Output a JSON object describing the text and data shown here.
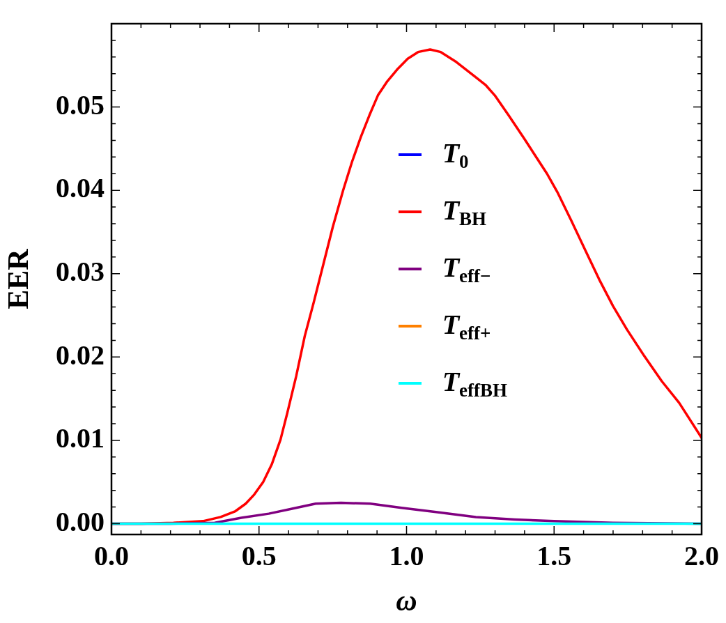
{
  "chart_data": {
    "type": "line",
    "xlabel": "ω",
    "ylabel": "EER",
    "xlim": [
      0,
      2
    ],
    "ylim": [
      -0.0013,
      0.06
    ],
    "xticks": [
      {
        "value": 0,
        "label": "0.0"
      },
      {
        "value": 0.1,
        "label": null
      },
      {
        "value": 0.2,
        "label": null
      },
      {
        "value": 0.3,
        "label": null
      },
      {
        "value": 0.4,
        "label": null
      },
      {
        "value": 0.5,
        "label": "0.5"
      },
      {
        "value": 0.6,
        "label": null
      },
      {
        "value": 0.7,
        "label": null
      },
      {
        "value": 0.8,
        "label": null
      },
      {
        "value": 0.9,
        "label": null
      },
      {
        "value": 1,
        "label": "1.0"
      },
      {
        "value": 1.1,
        "label": null
      },
      {
        "value": 1.2,
        "label": null
      },
      {
        "value": 1.3,
        "label": null
      },
      {
        "value": 1.4,
        "label": null
      },
      {
        "value": 1.5,
        "label": "1.5"
      },
      {
        "value": 1.6,
        "label": null
      },
      {
        "value": 1.7,
        "label": null
      },
      {
        "value": 1.8,
        "label": null
      },
      {
        "value": 1.9,
        "label": null
      },
      {
        "value": 2,
        "label": "2.0"
      }
    ],
    "yticks": [
      {
        "value": 0,
        "label": "0.00"
      },
      {
        "value": 0.002,
        "label": null
      },
      {
        "value": 0.004,
        "label": null
      },
      {
        "value": 0.006,
        "label": null
      },
      {
        "value": 0.008,
        "label": null
      },
      {
        "value": 0.01,
        "label": "0.01"
      },
      {
        "value": 0.012,
        "label": null
      },
      {
        "value": 0.014,
        "label": null
      },
      {
        "value": 0.016,
        "label": null
      },
      {
        "value": 0.018,
        "label": null
      },
      {
        "value": 0.02,
        "label": "0.02"
      },
      {
        "value": 0.022,
        "label": null
      },
      {
        "value": 0.024,
        "label": null
      },
      {
        "value": 0.026,
        "label": null
      },
      {
        "value": 0.028,
        "label": null
      },
      {
        "value": 0.03,
        "label": "0.03"
      },
      {
        "value": 0.032,
        "label": null
      },
      {
        "value": 0.034,
        "label": null
      },
      {
        "value": 0.036,
        "label": null
      },
      {
        "value": 0.038,
        "label": null
      },
      {
        "value": 0.04,
        "label": "0.04"
      },
      {
        "value": 0.042,
        "label": null
      },
      {
        "value": 0.044,
        "label": null
      },
      {
        "value": 0.046,
        "label": null
      },
      {
        "value": 0.048,
        "label": null
      },
      {
        "value": 0.05,
        "label": "0.05"
      },
      {
        "value": 0.052,
        "label": null
      },
      {
        "value": 0.054,
        "label": null
      },
      {
        "value": 0.056,
        "label": null
      },
      {
        "value": 0.058,
        "label": null
      }
    ],
    "legend": "center",
    "marker": "none",
    "line_style": "solid",
    "series": [
      {
        "name": "T$_{0}$",
        "color": "#0000ff"
      },
      {
        "name": "T$_{BH}$",
        "color": "#ff0000",
        "x": [
          0,
          0.1,
          0.21,
          0.31,
          0.37,
          0.42,
          0.455,
          0.484,
          0.514,
          0.543,
          0.573,
          0.596,
          0.626,
          0.655,
          0.685,
          0.72,
          0.75,
          0.785,
          0.815,
          0.845,
          0.874,
          0.903,
          0.933,
          0.968,
          1.004,
          1.039,
          1.08,
          1.116,
          1.169,
          1.234,
          1.269,
          1.299,
          1.346,
          1.399,
          1.476,
          1.511,
          1.558,
          1.606,
          1.653,
          1.7,
          1.747,
          1.806,
          1.865,
          1.924,
          2
        ],
        "values": [
          0,
          0,
          0.0001,
          0.0003,
          0.0008,
          0.0015,
          0.0024,
          0.0035,
          0.005,
          0.0071,
          0.0101,
          0.0133,
          0.0177,
          0.0225,
          0.0265,
          0.0314,
          0.0356,
          0.04,
          0.0434,
          0.0464,
          0.049,
          0.0514,
          0.053,
          0.0545,
          0.0558,
          0.0566,
          0.0569,
          0.0566,
          0.0554,
          0.0536,
          0.0526,
          0.0514,
          0.049,
          0.0462,
          0.042,
          0.0398,
          0.0364,
          0.0328,
          0.0293,
          0.0261,
          0.0233,
          0.0201,
          0.0171,
          0.0145,
          0.0103
        ]
      },
      {
        "name": "T$_{eff−}$",
        "color": "#800080",
        "x": [
          0,
          0.2,
          0.35,
          0.44,
          0.533,
          0.612,
          0.692,
          0.778,
          0.877,
          0.983,
          1.1,
          1.235,
          1.367,
          1.5,
          1.7,
          2
        ],
        "values": [
          0,
          0,
          0.0001,
          0.0007,
          0.0012,
          0.0018,
          0.0024,
          0.0025,
          0.0024,
          0.0019,
          0.0014,
          0.0008,
          0.0005,
          0.0003,
          0.0001,
          0
        ]
      },
      {
        "name": "T$_{eff+}$",
        "color": "#ff8000"
      },
      {
        "name": "T$_{effBH}$",
        "color": "#00ffff",
        "x": [
          0,
          2
        ],
        "values": [
          0,
          0
        ]
      }
    ]
  }
}
